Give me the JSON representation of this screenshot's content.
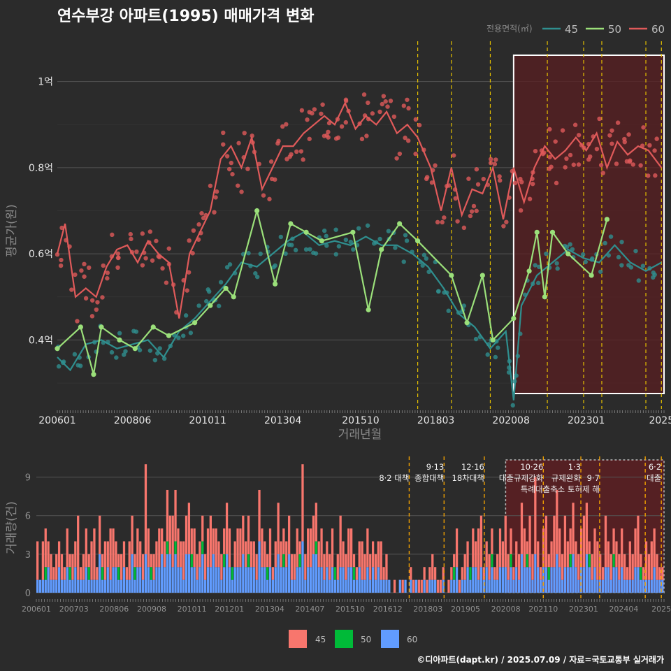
{
  "title": "연수부강 아파트(1995) 매매가격 변화",
  "legend_title": "전용면적(㎡)",
  "caption": "©디아파트(dapt.kr) / 2025.07.09 / 자료=국토교통부 실거래가",
  "colors": {
    "s45_line": "#2f8f8f",
    "s50_line": "#9be07a",
    "s60_line": "#e05a5a",
    "b45": "#f8766d",
    "b50": "#00ba38",
    "b60": "#619cff",
    "highlight_fill": "#5a1f22",
    "policy_line": "#e5c000",
    "policy_line_bottom": "#f0a000"
  },
  "chart_data": [
    {
      "type": "line",
      "title": "연수부강 아파트(1995) 매매가격 변화",
      "xlabel": "거래년월",
      "ylabel": "평균가(원)",
      "x_ticks": [
        "200601",
        "200806",
        "201011",
        "201304",
        "201510",
        "201803",
        "202008",
        "202301",
        "2025"
      ],
      "y_ticks": [
        "0.4억",
        "0.6억",
        "0.8억",
        "1억"
      ],
      "ylim": [
        0.24,
        1.1
      ],
      "legend": [
        "45",
        "50",
        "60"
      ],
      "legend_position": "top-right",
      "highlight_period": [
        "2020-09",
        "2025-07"
      ],
      "policy_dates": [
        "2017-08",
        "2018-09",
        "2019-12",
        "2021-10",
        "2022-12",
        "2023-07",
        "2024-12",
        "2025-06"
      ],
      "series": [
        {
          "name": "45",
          "x": [
            "2006-01",
            "2006-06",
            "2006-12",
            "2007-06",
            "2007-12",
            "2008-06",
            "2008-12",
            "2009-06",
            "2009-12",
            "2010-06",
            "2010-12",
            "2011-06",
            "2011-12",
            "2012-06",
            "2012-12",
            "2013-06",
            "2013-12",
            "2014-06",
            "2014-12",
            "2015-06",
            "2015-12",
            "2016-06",
            "2016-12",
            "2017-06",
            "2017-12",
            "2018-06",
            "2018-12",
            "2019-06",
            "2019-12",
            "2020-06",
            "2020-09",
            "2020-12",
            "2021-06",
            "2021-12",
            "2022-06",
            "2022-12",
            "2023-06",
            "2023-12",
            "2024-06",
            "2024-12",
            "2025-06"
          ],
          "y": [
            0.36,
            0.33,
            0.39,
            0.4,
            0.38,
            0.39,
            0.4,
            0.36,
            0.42,
            0.45,
            0.49,
            0.53,
            0.58,
            0.57,
            0.6,
            0.63,
            0.65,
            0.62,
            0.63,
            0.62,
            0.64,
            0.62,
            0.62,
            0.6,
            0.57,
            0.52,
            0.46,
            0.43,
            0.38,
            0.42,
            0.26,
            0.48,
            0.55,
            0.58,
            0.61,
            0.59,
            0.58,
            0.62,
            0.58,
            0.56,
            0.58
          ]
        },
        {
          "name": "50",
          "x": [
            "2006-01",
            "2006-10",
            "2007-03",
            "2007-06",
            "2008-01",
            "2008-07",
            "2009-02",
            "2009-08",
            "2010-06",
            "2010-12",
            "2011-06",
            "2011-09",
            "2012-06",
            "2013-01",
            "2013-07",
            "2014-01",
            "2014-07",
            "2015-07",
            "2016-01",
            "2016-06",
            "2017-01",
            "2017-08",
            "2018-09",
            "2019-03",
            "2019-09",
            "2020-01",
            "2020-09",
            "2021-03",
            "2021-06",
            "2021-09",
            "2021-12",
            "2022-06",
            "2023-03",
            "2023-09"
          ],
          "y": [
            0.38,
            0.43,
            0.32,
            0.43,
            0.4,
            0.38,
            0.43,
            0.41,
            0.44,
            0.48,
            0.52,
            0.5,
            0.7,
            0.53,
            0.67,
            0.65,
            0.63,
            0.65,
            0.47,
            0.61,
            0.67,
            0.63,
            0.55,
            0.44,
            0.55,
            0.4,
            0.45,
            0.56,
            0.65,
            0.5,
            0.65,
            0.6,
            0.55,
            0.68
          ]
        },
        {
          "name": "60",
          "x": [
            "2006-01",
            "2006-04",
            "2006-08",
            "2006-12",
            "2007-04",
            "2007-08",
            "2007-12",
            "2008-04",
            "2008-08",
            "2008-12",
            "2009-04",
            "2009-08",
            "2009-12",
            "2010-04",
            "2010-08",
            "2010-12",
            "2011-04",
            "2011-08",
            "2011-12",
            "2012-04",
            "2012-08",
            "2012-12",
            "2013-04",
            "2013-08",
            "2013-12",
            "2014-04",
            "2014-08",
            "2014-12",
            "2015-04",
            "2015-08",
            "2015-12",
            "2016-04",
            "2016-08",
            "2016-12",
            "2017-04",
            "2017-08",
            "2018-01",
            "2018-05",
            "2018-09",
            "2019-01",
            "2019-05",
            "2019-09",
            "2020-01",
            "2020-05",
            "2020-09",
            "2021-01",
            "2021-05",
            "2021-09",
            "2022-01",
            "2022-05",
            "2022-09",
            "2023-01",
            "2023-05",
            "2023-09",
            "2024-01",
            "2024-05",
            "2024-09",
            "2025-01",
            "2025-06"
          ],
          "y": [
            0.6,
            0.67,
            0.5,
            0.52,
            0.5,
            0.57,
            0.61,
            0.62,
            0.58,
            0.63,
            0.6,
            0.58,
            0.45,
            0.6,
            0.65,
            0.7,
            0.82,
            0.85,
            0.8,
            0.87,
            0.75,
            0.8,
            0.85,
            0.85,
            0.88,
            0.9,
            0.92,
            0.9,
            0.95,
            0.89,
            0.92,
            0.9,
            0.93,
            0.88,
            0.9,
            0.87,
            0.8,
            0.7,
            0.8,
            0.69,
            0.75,
            0.74,
            0.8,
            0.68,
            0.8,
            0.72,
            0.8,
            0.85,
            0.82,
            0.84,
            0.87,
            0.84,
            0.88,
            0.8,
            0.86,
            0.83,
            0.85,
            0.84,
            0.8
          ]
        }
      ]
    },
    {
      "type": "bar",
      "xlabel": "거래년월",
      "ylabel": "거래량(건)",
      "x_ticks": [
        "200601",
        "200703",
        "200806",
        "200908",
        "201011",
        "201201",
        "201304",
        "201407",
        "201510",
        "201612",
        "201803",
        "201905",
        "202008",
        "202110",
        "202301",
        "202404",
        "2025"
      ],
      "y_ticks": [
        "0",
        "3",
        "6",
        "9"
      ],
      "ylim": [
        0,
        10.5
      ],
      "legend": [
        "45",
        "50",
        "60"
      ],
      "legend_position": "bottom",
      "annotations": [
        {
          "date": "2017-08",
          "label": "8·2 대책",
          "row": 1
        },
        {
          "date": "2018-09",
          "label": "9·13",
          "row": 0
        },
        {
          "date": "2018-09",
          "label": "종합대책",
          "row": 1
        },
        {
          "date": "2019-12",
          "label": "12·16",
          "row": 0
        },
        {
          "date": "2019-12",
          "label": "18차대책",
          "row": 1
        },
        {
          "date": "2021-10",
          "label": "10·26",
          "row": 0
        },
        {
          "date": "2021-10",
          "label": "대출규제강화",
          "row": 1
        },
        {
          "date": "2022-12",
          "label": "1·3",
          "row": 0
        },
        {
          "date": "2022-12",
          "label": "규제완화",
          "row": 1
        },
        {
          "date": "2023-07",
          "label": "9·7",
          "row": 1
        },
        {
          "date": "2023-07",
          "label": "특례대출축소 토허제 해",
          "row": 2
        },
        {
          "date": "2025-06",
          "label": "6·2",
          "row": 0
        },
        {
          "date": "2025-06",
          "label": "대출",
          "row": 1
        }
      ],
      "series": [
        {
          "name": "45",
          "values_note": "monthly counts 2006-01..2025-07 (approx.)"
        },
        {
          "name": "50"
        },
        {
          "name": "60"
        }
      ],
      "monthly_total": [
        4,
        1,
        4,
        5,
        4,
        3,
        2,
        3,
        4,
        3,
        2,
        5,
        3,
        3,
        4,
        6,
        2,
        3,
        5,
        3,
        4,
        5,
        2,
        6,
        3,
        4,
        4,
        5,
        5,
        4,
        3,
        3,
        4,
        2,
        4,
        6,
        3,
        5,
        4,
        3,
        10,
        5,
        3,
        3,
        4,
        5,
        5,
        4,
        8,
        6,
        6,
        8,
        5,
        4,
        4,
        6,
        7,
        5,
        5,
        3,
        4,
        6,
        3,
        5,
        6,
        5,
        5,
        4,
        3,
        5,
        7,
        5,
        2,
        4,
        5,
        5,
        6,
        4,
        6,
        4,
        4,
        3,
        8,
        5,
        4,
        3,
        5,
        2,
        4,
        7,
        4,
        5,
        4,
        6,
        3,
        3,
        5,
        4,
        10,
        3,
        5,
        5,
        6,
        7,
        4,
        5,
        3,
        4,
        3,
        5,
        2,
        3,
        6,
        4,
        3,
        5,
        5,
        3,
        2,
        4,
        4,
        3,
        5,
        3,
        4,
        3,
        4,
        4,
        2,
        3,
        1,
        0,
        1,
        0,
        1,
        1,
        1,
        0,
        2,
        1,
        1,
        1,
        1,
        2,
        1,
        2,
        3,
        2,
        1,
        1,
        2,
        0,
        1,
        2,
        3,
        5,
        1,
        2,
        3,
        4,
        2,
        5,
        4,
        5,
        6,
        2,
        4,
        3,
        5,
        2,
        3,
        5,
        4,
        6,
        3,
        5,
        2,
        4,
        3,
        7,
        5,
        4,
        6,
        3,
        9,
        4,
        2,
        5,
        6,
        3,
        4,
        6,
        8,
        5,
        3,
        6,
        4,
        5,
        7,
        4,
        3,
        5,
        6,
        7,
        4,
        3,
        5,
        4,
        3,
        2,
        6,
        4,
        3,
        5,
        4,
        3,
        5,
        3,
        2,
        4,
        3,
        5,
        6,
        3,
        2,
        4,
        3,
        4,
        5,
        3,
        2,
        2
      ],
      "monthly_50": [
        0,
        0,
        0,
        1,
        0,
        0,
        0,
        0,
        0,
        0,
        0,
        0,
        1,
        0,
        0,
        0,
        0,
        0,
        0,
        1,
        0,
        0,
        0,
        0,
        1,
        0,
        0,
        0,
        0,
        0,
        1,
        0,
        0,
        0,
        0,
        0,
        1,
        0,
        0,
        0,
        0,
        0,
        1,
        0,
        0,
        0,
        0,
        0,
        1,
        0,
        0,
        1,
        0,
        0,
        0,
        0,
        0,
        1,
        0,
        0,
        0,
        1,
        0,
        0,
        0,
        0,
        0,
        0,
        0,
        1,
        0,
        0,
        1,
        0,
        0,
        0,
        0,
        0,
        1,
        0,
        0,
        0,
        0,
        0,
        0,
        1,
        0,
        0,
        0,
        0,
        0,
        1,
        0,
        0,
        0,
        0,
        0,
        1,
        0,
        0,
        0,
        0,
        0,
        1,
        0,
        0,
        0,
        0,
        0,
        0,
        1,
        0,
        0,
        0,
        0,
        0,
        0,
        1,
        0,
        0,
        0,
        0,
        0,
        0,
        0,
        0,
        0,
        0,
        0,
        0,
        0,
        0,
        0,
        0,
        0,
        0,
        0,
        0,
        0,
        0,
        0,
        0,
        0,
        0,
        0,
        0,
        0,
        0,
        0,
        0,
        0,
        0,
        0,
        0,
        1,
        0,
        0,
        0,
        0,
        0,
        1,
        0,
        0,
        0,
        0,
        0,
        0,
        0,
        1,
        0,
        0,
        0,
        0,
        0,
        0,
        1,
        0,
        0,
        0,
        0,
        0,
        1,
        0,
        0,
        0,
        0,
        0,
        0,
        0,
        1,
        0,
        0,
        0,
        0,
        0,
        0,
        0,
        1,
        0,
        0,
        0,
        0,
        0,
        0,
        1,
        0,
        0,
        0,
        0,
        0,
        0,
        0,
        0,
        1,
        0,
        0,
        0,
        0,
        0,
        0,
        0,
        0,
        0,
        1,
        0,
        0,
        0,
        0,
        0,
        0,
        0,
        0,
        0,
        0,
        0,
        0,
        0,
        0,
        0
      ],
      "monthly_60": [
        1,
        1,
        1,
        1,
        2,
        1,
        1,
        1,
        2,
        1,
        1,
        2,
        1,
        1,
        2,
        1,
        1,
        1,
        2,
        1,
        1,
        1,
        1,
        3,
        1,
        1,
        2,
        1,
        2,
        2,
        1,
        1,
        2,
        1,
        1,
        3,
        1,
        2,
        2,
        1,
        3,
        2,
        1,
        1,
        2,
        2,
        3,
        2,
        3,
        3,
        2,
        3,
        2,
        2,
        1,
        3,
        3,
        2,
        2,
        1,
        2,
        3,
        1,
        2,
        2,
        3,
        2,
        2,
        1,
        2,
        3,
        2,
        1,
        2,
        2,
        2,
        3,
        2,
        2,
        2,
        2,
        1,
        4,
        2,
        2,
        1,
        2,
        1,
        2,
        3,
        2,
        2,
        2,
        3,
        1,
        1,
        2,
        2,
        4,
        1,
        2,
        2,
        3,
        3,
        2,
        2,
        1,
        2,
        1,
        2,
        1,
        1,
        2,
        2,
        1,
        2,
        2,
        1,
        1,
        2,
        1,
        1,
        2,
        1,
        2,
        1,
        2,
        1,
        1,
        1,
        1,
        0,
        0,
        0,
        1,
        0,
        1,
        0,
        1,
        0,
        1,
        0,
        0,
        1,
        0,
        1,
        1,
        1,
        0,
        0,
        1,
        0,
        0,
        1,
        1,
        2,
        0,
        1,
        1,
        2,
        1,
        2,
        2,
        1,
        2,
        1,
        2,
        1,
        2,
        1,
        1,
        2,
        2,
        2,
        1,
        2,
        1,
        2,
        1,
        3,
        2,
        2,
        2,
        1,
        3,
        2,
        1,
        2,
        2,
        1,
        2,
        2,
        3,
        2,
        1,
        2,
        2,
        2,
        3,
        2,
        1,
        2,
        2,
        3,
        2,
        1,
        2,
        1,
        1,
        1,
        2,
        2,
        1,
        2,
        2,
        1,
        2,
        1,
        1,
        1,
        1,
        2,
        2,
        1,
        1,
        1,
        1,
        1,
        2,
        1,
        1,
        1
      ]
    }
  ]
}
